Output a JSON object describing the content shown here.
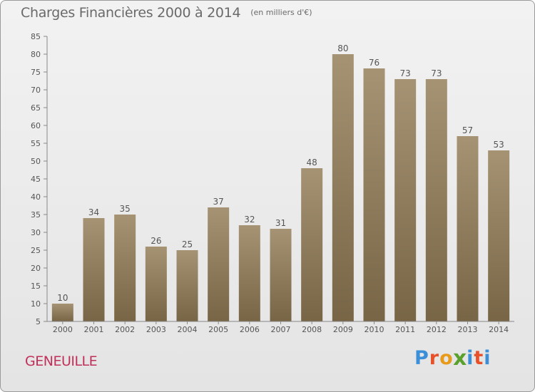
{
  "header": {
    "title": "Charges Financières 2000 à 2014",
    "unit": "(en milliers d'€)"
  },
  "footer": {
    "commune": "GENEUILLE",
    "logo_letters": [
      "P",
      "r",
      "o",
      "x",
      "i",
      "t",
      "i"
    ],
    "logo_colors": [
      "#3a8fd8",
      "#e8502a",
      "#e89a1a",
      "#5aa02c",
      "#3a8fd8",
      "#e8502a",
      "#3a8fd8"
    ]
  },
  "colors": {
    "bar_top": "#a59374",
    "bar_bottom": "#776546",
    "axis": "#888888",
    "text": "#555555",
    "title": "#6a6a6a",
    "commune": "#c0305a"
  },
  "chart_data": {
    "type": "bar",
    "categories": [
      "2000",
      "2001",
      "2002",
      "2003",
      "2004",
      "2005",
      "2006",
      "2007",
      "2008",
      "2009",
      "2010",
      "2011",
      "2012",
      "2013",
      "2014"
    ],
    "values": [
      10,
      34,
      35,
      26,
      25,
      37,
      32,
      31,
      48,
      80,
      76,
      73,
      73,
      57,
      53
    ],
    "ylim": [
      5,
      85
    ],
    "yticks": [
      5,
      10,
      15,
      20,
      25,
      30,
      35,
      40,
      45,
      50,
      55,
      60,
      65,
      70,
      75,
      80,
      85
    ],
    "grid": false,
    "data_labels": true
  }
}
